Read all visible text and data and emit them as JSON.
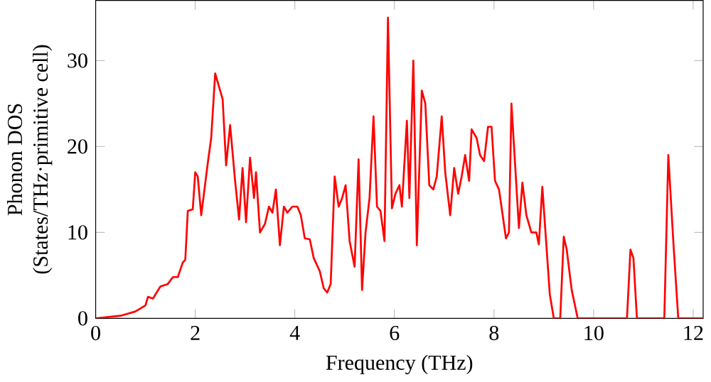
{
  "chart_data": {
    "type": "line",
    "xlabel": "Frequency (THz)",
    "ylabel": "Phonon DOS\n(States/THz·primitive cell)",
    "xlim": [
      0,
      12.2
    ],
    "ylim": [
      0,
      37
    ],
    "xticks": [
      0,
      2,
      4,
      6,
      8,
      10,
      12
    ],
    "yticks": [
      0,
      10,
      20,
      30
    ],
    "series": [
      {
        "color": "#ff0000",
        "x": [
          0,
          0.5,
          0.8,
          1.0,
          1.05,
          1.15,
          1.3,
          1.45,
          1.55,
          1.65,
          1.75,
          1.8,
          1.85,
          1.95,
          2.0,
          2.05,
          2.12,
          2.25,
          2.32,
          2.4,
          2.5,
          2.55,
          2.62,
          2.7,
          2.8,
          2.88,
          2.95,
          3.02,
          3.1,
          3.18,
          3.22,
          3.3,
          3.4,
          3.48,
          3.55,
          3.62,
          3.7,
          3.78,
          3.85,
          3.95,
          4.05,
          4.12,
          4.2,
          4.3,
          4.38,
          4.5,
          4.58,
          4.65,
          4.72,
          4.8,
          4.88,
          4.95,
          5.02,
          5.1,
          5.2,
          5.28,
          5.35,
          5.42,
          5.5,
          5.58,
          5.65,
          5.72,
          5.8,
          5.87,
          5.95,
          6.02,
          6.1,
          6.15,
          6.25,
          6.3,
          6.38,
          6.45,
          6.55,
          6.62,
          6.7,
          6.78,
          6.85,
          6.95,
          7.02,
          7.12,
          7.2,
          7.28,
          7.35,
          7.42,
          7.5,
          7.55,
          7.65,
          7.72,
          7.8,
          7.88,
          7.95,
          8.02,
          8.1,
          8.24,
          8.3,
          8.35,
          8.5,
          8.57,
          8.65,
          8.75,
          8.85,
          8.9,
          8.97,
          9.12,
          9.2,
          9.33,
          9.4,
          9.46,
          9.56,
          9.68,
          10.67,
          10.74,
          10.8,
          10.87,
          11.42,
          11.5,
          11.6,
          11.7,
          12.2
        ],
        "values": [
          0,
          0.3,
          0.8,
          1.5,
          2.5,
          2.3,
          3.7,
          4,
          4.8,
          4.8,
          6.5,
          6.8,
          12.5,
          12.7,
          17,
          16.5,
          12,
          18,
          21,
          28.5,
          26.5,
          25.5,
          17.8,
          22.5,
          16,
          11.5,
          17.5,
          11.2,
          18.7,
          14,
          17,
          10,
          11,
          13,
          12.3,
          15,
          8.5,
          13,
          12.3,
          13,
          13,
          12,
          9.3,
          9.2,
          7,
          5.5,
          3.5,
          3,
          4,
          16.5,
          13,
          14,
          15.5,
          9,
          6,
          18.5,
          3.3,
          10,
          14,
          23.5,
          13,
          12.5,
          9,
          35,
          12.8,
          14.5,
          15.5,
          13,
          23,
          14,
          30,
          8.5,
          26.5,
          25,
          15.5,
          15,
          16.5,
          23.5,
          17,
          12,
          17.5,
          14.5,
          16.5,
          19,
          16,
          22,
          21,
          19,
          18.3,
          22.3,
          22.3,
          16,
          15,
          9.3,
          10,
          25,
          10.5,
          15.8,
          12,
          10,
          10,
          8.6,
          15.3,
          2.8,
          0,
          0,
          9.5,
          8,
          3.3,
          0,
          0,
          8,
          7,
          0,
          0,
          19,
          9,
          0,
          0
        ]
      }
    ]
  }
}
